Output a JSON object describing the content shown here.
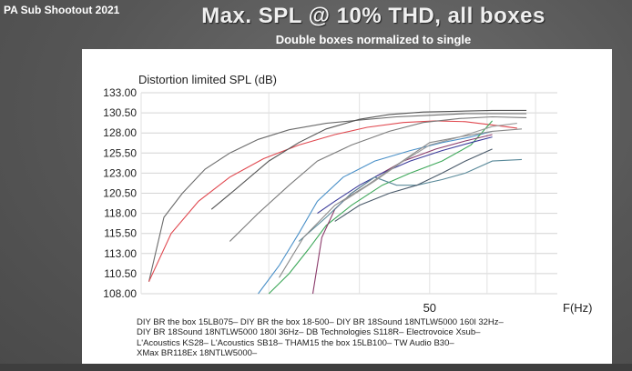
{
  "header": {
    "left_label": "PA Sub Shootout 2021",
    "title": "Max. SPL @ 10% THD, all boxes",
    "subtitle": "Double boxes normalized to single"
  },
  "chart_data": {
    "type": "line",
    "title": "Distortion limited SPL (dB)",
    "xlabel": "F(Hz)",
    "x_scale": "log",
    "x_ticks": [
      "50"
    ],
    "ylim": [
      108.0,
      133.0
    ],
    "y_ticks": [
      "133.00",
      "130.50",
      "128.00",
      "125.50",
      "123.00",
      "120.50",
      "118.00",
      "115.50",
      "113.00",
      "110.50",
      "108.00"
    ],
    "grid": true,
    "legend_position": "bottom",
    "legend_lines": [
      "DIY BR the box 15LB075– DIY BR the box 18-500– DIY BR 18Sound 18NTLW5000 160l 32Hz–",
      "DIY BR 18Sound 18NTLW5000 180l 36Hz– DB Technologies S118R– Electrovoice Xsub–",
      "L'Acoustics KS28– L'Acoustics SB18– THAM15 the box 15LB100– TW Audio B30–",
      "XMax BR118Ex 18NTLW5000–"
    ],
    "series": [
      {
        "color": "#6b6b6b",
        "x": [
          20.5,
          21.5,
          22.8,
          24.5,
          26.5,
          29,
          32,
          36,
          40,
          45,
          50,
          56,
          62,
          68
        ],
        "values": [
          109.5,
          117.5,
          120.5,
          123.5,
          125.5,
          127.2,
          128.4,
          129.2,
          129.6,
          130.0,
          130.2,
          130.4,
          130.4,
          130.4
        ]
      },
      {
        "color": "#e0484f",
        "x": [
          20.5,
          22,
          24,
          26.5,
          29.5,
          33,
          37,
          41,
          46,
          51,
          56,
          61,
          66
        ],
        "values": [
          109.5,
          115.5,
          119.5,
          122.5,
          124.8,
          126.5,
          127.8,
          128.7,
          129.3,
          129.5,
          129.4,
          129.0,
          128.6
        ]
      },
      {
        "color": "#555555",
        "x": [
          25,
          27,
          30,
          33,
          36,
          40,
          44,
          49,
          55,
          61,
          68
        ],
        "values": [
          118.5,
          121,
          124.5,
          126.8,
          128.5,
          129.7,
          130.3,
          130.6,
          130.7,
          130.8,
          130.8
        ]
      },
      {
        "color": "#7a7a7a",
        "x": [
          26.5,
          29,
          32,
          35,
          39,
          44,
          49,
          55,
          61,
          68
        ],
        "values": [
          114.5,
          118,
          121.5,
          124.5,
          126.5,
          128.2,
          129.3,
          129.8,
          130.0,
          129.9
        ]
      },
      {
        "color": "#4a90c8",
        "x": [
          29,
          31,
          33,
          35,
          38,
          42,
          47,
          52,
          57,
          61
        ],
        "values": [
          108,
          111.5,
          115.5,
          119.5,
          122.5,
          124.5,
          125.8,
          126.8,
          127.5,
          128.2
        ]
      },
      {
        "color": "#3ea85a",
        "x": [
          30,
          32,
          34,
          36,
          39,
          43,
          47,
          52,
          57,
          61
        ],
        "values": [
          108,
          110.5,
          113.5,
          116.5,
          119,
          121.5,
          123,
          124.5,
          126.5,
          129.5
        ]
      },
      {
        "color": "#8a3a6a",
        "x": [
          34.5,
          35.5,
          37,
          39,
          42,
          46,
          51,
          56,
          61
        ],
        "values": [
          108,
          115,
          118.5,
          120.5,
          122.5,
          124.5,
          126.0,
          127.0,
          127.8
        ]
      },
      {
        "color": "#3a3a9a",
        "x": [
          35,
          37,
          40,
          43,
          47,
          52,
          57,
          61
        ],
        "values": [
          118,
          119.5,
          121.5,
          123,
          124.5,
          125.8,
          126.8,
          127.5
        ]
      },
      {
        "color": "#5a8a9a",
        "x": [
          33,
          36,
          39,
          42,
          45,
          48,
          52,
          56,
          61,
          67
        ],
        "values": [
          114.5,
          117.5,
          120.5,
          122.5,
          121.5,
          121.5,
          122.2,
          123,
          124.5,
          124.7
        ]
      },
      {
        "color": "#4a5a6a",
        "x": [
          37,
          40,
          44,
          48,
          52,
          56,
          61
        ],
        "values": [
          117,
          119,
          120.5,
          121.5,
          123,
          124.5,
          126.0
        ]
      },
      {
        "color": "#8a8a8a",
        "x": [
          31,
          33.5,
          37,
          41,
          45,
          50,
          55,
          61,
          67
        ],
        "values": [
          110,
          115,
          119,
          121.5,
          124,
          126.8,
          127.5,
          128.2,
          128.5
        ]
      },
      {
        "color": "#9a9a9a",
        "x": [
          38,
          42,
          46,
          50,
          55,
          61,
          66
        ],
        "values": [
          119.5,
          122,
          124.5,
          126.5,
          127.5,
          128.8,
          129.2
        ]
      }
    ]
  }
}
